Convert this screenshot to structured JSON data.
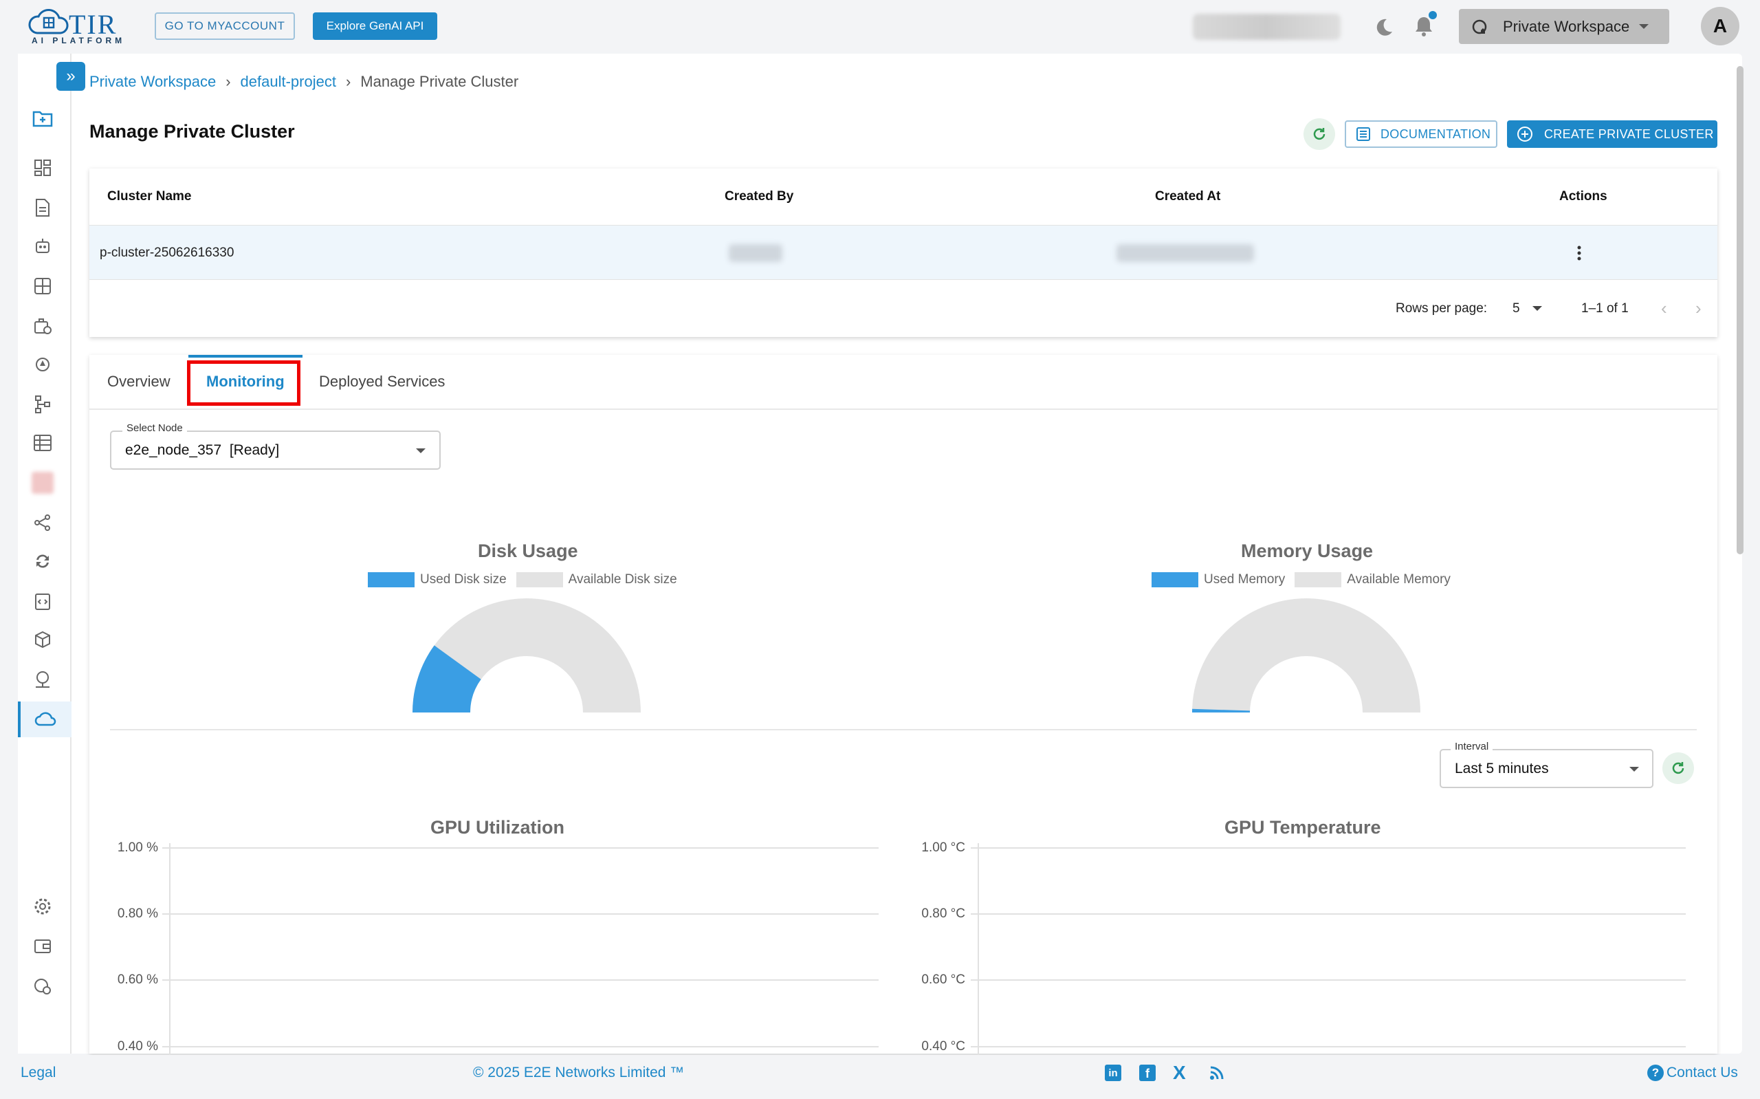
{
  "header": {
    "logo_text": "TIR",
    "logo_subtitle": "AI PLATFORM",
    "myaccount_label": "GO TO MYACCOUNT",
    "genai_label": "Explore GenAI API",
    "workspace_label": "Private Workspace",
    "avatar_letter": "A"
  },
  "breadcrumb": {
    "workspace": "Private Workspace",
    "project": "default-project",
    "current": "Manage Private Cluster",
    "separator": "›"
  },
  "page": {
    "title": "Manage Private Cluster",
    "documentation_label": "DOCUMENTATION",
    "create_label": "CREATE PRIVATE CLUSTER"
  },
  "table": {
    "columns": [
      "Cluster Name",
      "Created By",
      "Created At",
      "Actions"
    ],
    "rows": [
      {
        "cluster_name": "p-cluster-25062616330",
        "created_by": "",
        "created_at": ""
      }
    ],
    "rows_per_page_label": "Rows per page:",
    "rows_per_page_value": "5",
    "range_label": "1–1 of 1"
  },
  "tabs": [
    "Overview",
    "Monitoring",
    "Deployed Services"
  ],
  "node_select": {
    "label": "Select Node",
    "value": "e2e_node_357  [Ready]"
  },
  "interval_select": {
    "label": "Interval",
    "value": "Last 5 minutes"
  },
  "disk_chart": {
    "title": "Disk Usage",
    "legend_used": "Used Disk size",
    "legend_available": "Available Disk size"
  },
  "memory_chart": {
    "title": "Memory Usage",
    "legend_used": "Used Memory",
    "legend_available": "Available Memory"
  },
  "gpu_util_chart": {
    "title": "GPU Utilization",
    "ticks": [
      "1.00 %",
      "0.80 %",
      "0.60 %",
      "0.40 %"
    ]
  },
  "gpu_temp_chart": {
    "title": "GPU Temperature",
    "ticks": [
      "1.00 °C",
      "0.80 °C",
      "0.60 °C",
      "0.40 °C"
    ]
  },
  "footer": {
    "legal": "Legal",
    "copyright": "© 2025 E2E Networks Limited ™",
    "contact": "Contact Us"
  },
  "colors": {
    "primary": "#1e88c8",
    "used": "#3a9ee4",
    "available": "#e3e3e3",
    "highlight": "#ee0000"
  },
  "chart_data": [
    {
      "type": "pie",
      "title": "Disk Usage",
      "categories": [
        "Used Disk size",
        "Available Disk size"
      ],
      "values": [
        20,
        80
      ]
    },
    {
      "type": "pie",
      "title": "Memory Usage",
      "categories": [
        "Used Memory",
        "Available Memory"
      ],
      "values": [
        1,
        99
      ]
    },
    {
      "type": "line",
      "title": "GPU Utilization",
      "ylabel": "%",
      "ylim": [
        0.4,
        1.0
      ],
      "yticks": [
        "1.00 %",
        "0.80 %",
        "0.60 %",
        "0.40 %"
      ],
      "series": []
    },
    {
      "type": "line",
      "title": "GPU Temperature",
      "ylabel": "°C",
      "ylim": [
        0.4,
        1.0
      ],
      "yticks": [
        "1.00 °C",
        "0.80 °C",
        "0.60 °C",
        "0.40 °C"
      ],
      "series": []
    }
  ]
}
